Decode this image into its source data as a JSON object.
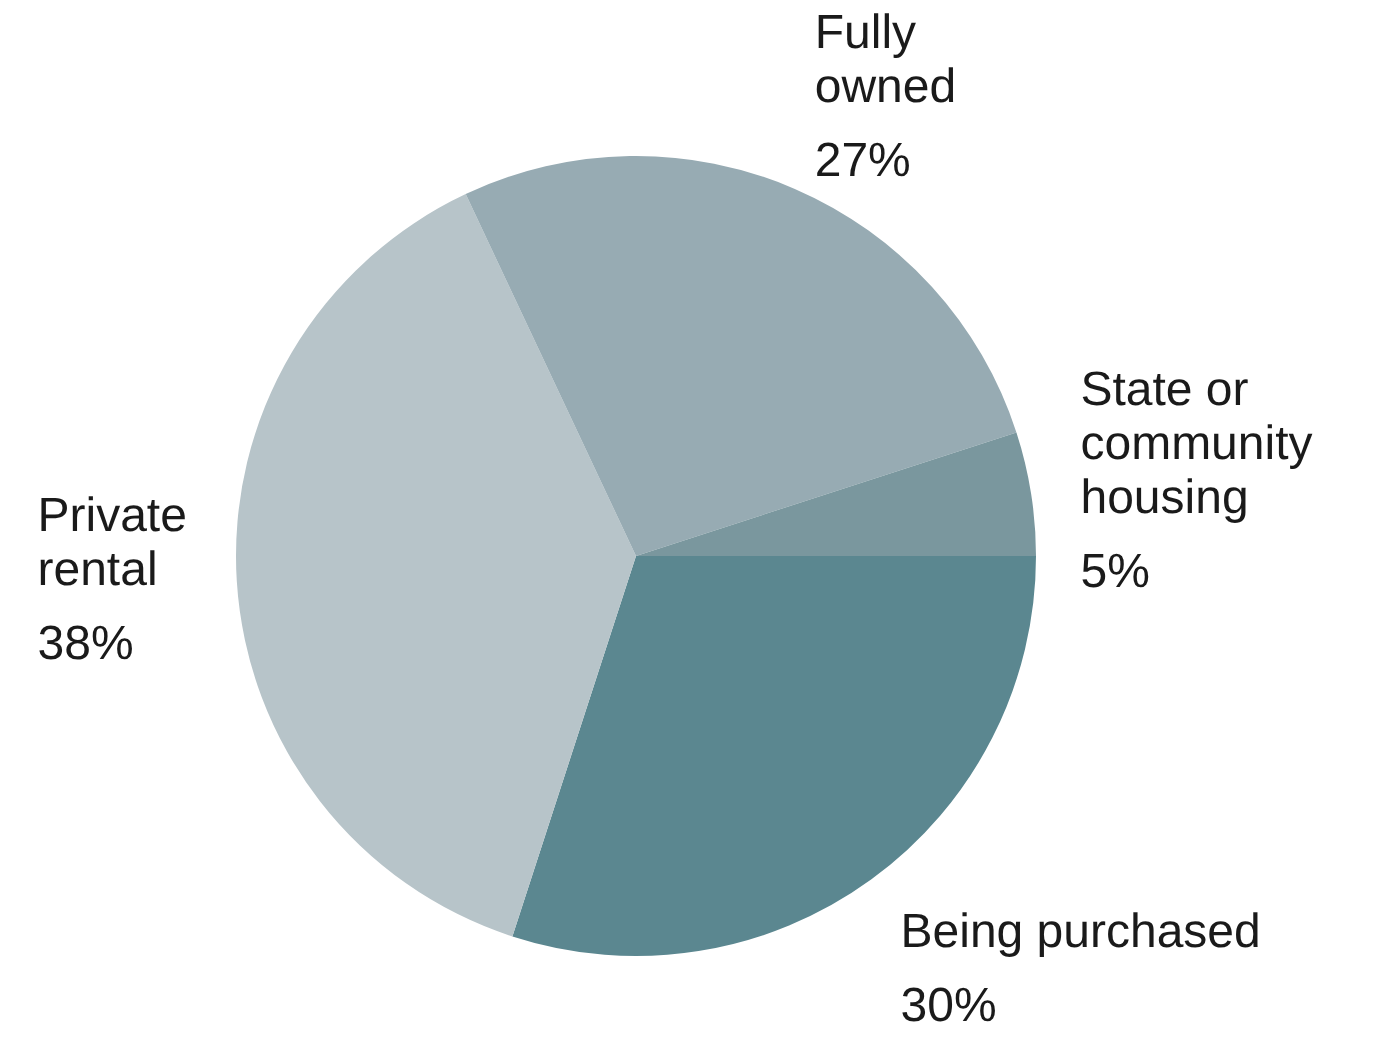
{
  "chart_data": {
    "type": "pie",
    "categories": [
      "Being purchased",
      "Private rental",
      "Fully owned",
      "State or community housing"
    ],
    "values": [
      30,
      38,
      27,
      5
    ],
    "colors": [
      "#5b8790",
      "#b7c4c9",
      "#97abb3",
      "#7a979e"
    ],
    "value_labels": [
      "30%",
      "38%",
      "27%",
      "5%"
    ],
    "legend": false
  }
}
